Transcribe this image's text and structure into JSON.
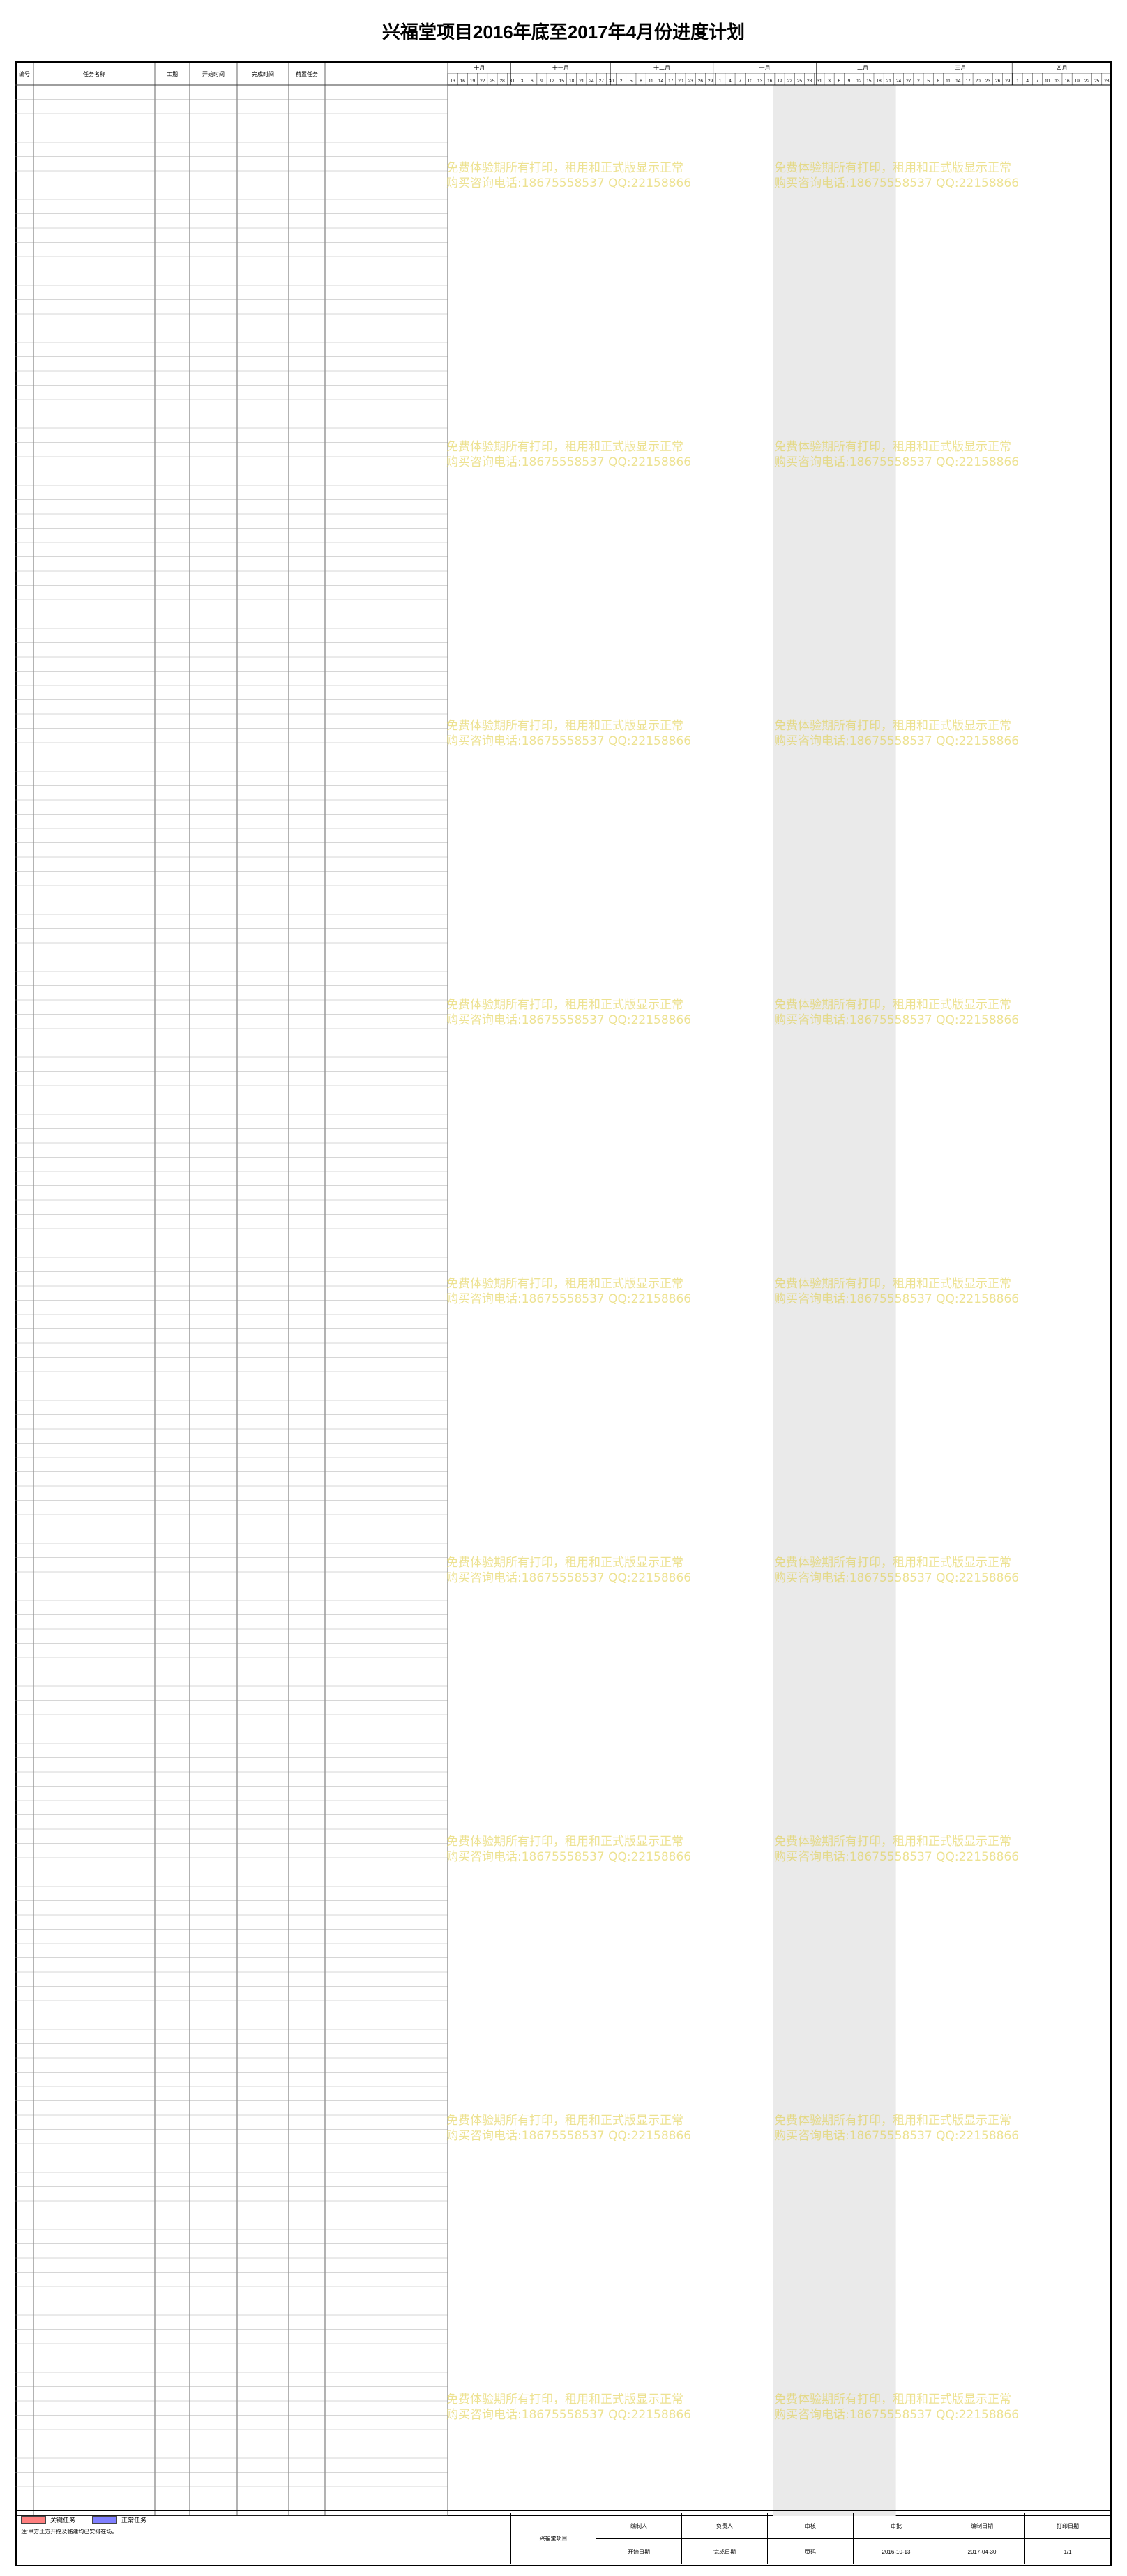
{
  "title": "兴福堂项目2016年底至2017年4月份进度计划",
  "headers": {
    "no": "编号",
    "name": "任务名称",
    "dur": "工期",
    "start": "开始时间",
    "finish": "完成时间",
    "pred": "前置任务"
  },
  "months": [
    "十月",
    "十一月",
    "十二月",
    "一月",
    "二月",
    "三月",
    "四月"
  ],
  "day_ticks": [
    "13",
    "16",
    "19",
    "22",
    "25",
    "28",
    "31",
    "3",
    "6",
    "9",
    "12",
    "15",
    "18",
    "21",
    "24",
    "27",
    "30",
    "2",
    "5",
    "8",
    "11",
    "14",
    "17",
    "20",
    "23",
    "26",
    "29",
    "1",
    "4",
    "7",
    "10",
    "13",
    "16",
    "19",
    "22",
    "25",
    "28",
    "31",
    "3",
    "6",
    "9",
    "12",
    "15",
    "18",
    "21",
    "24",
    "27",
    "2",
    "5",
    "8",
    "11",
    "14",
    "17",
    "20",
    "23",
    "26",
    "29",
    "1",
    "4",
    "7",
    "10",
    "13",
    "16",
    "19",
    "22",
    "25",
    "28"
  ],
  "colors": {
    "normal_bar": "#7f7fff",
    "critical_bar": "#ff7f7f",
    "nonwork": "#eaeaea",
    "watermark": "#e0cc3a"
  },
  "watermark": [
    "免费体验期所有打印，租用和正式版显示正常",
    "购买咨询电话:18675558537 QQ:22158866"
  ],
  "legend": {
    "normal": "正常任务",
    "critical": "关键任务"
  },
  "footer": {
    "note": "注:甲方土方开挖及临建均已安排在场。",
    "project_name": "兴福堂项目",
    "cells": [
      "编制人",
      "负责人",
      "审核",
      "审批",
      "编制日期",
      "打印日期",
      "开始日期",
      "完成日期",
      "页码",
      "2016-10-13",
      "2017-04-30",
      "1/1"
    ]
  },
  "chart_data": {
    "type": "gantt",
    "title": "兴福堂项目2016年底至2017年4月份进度计划",
    "x_range": [
      "2016-10-13",
      "2017-04-30"
    ],
    "tasks": []
  }
}
